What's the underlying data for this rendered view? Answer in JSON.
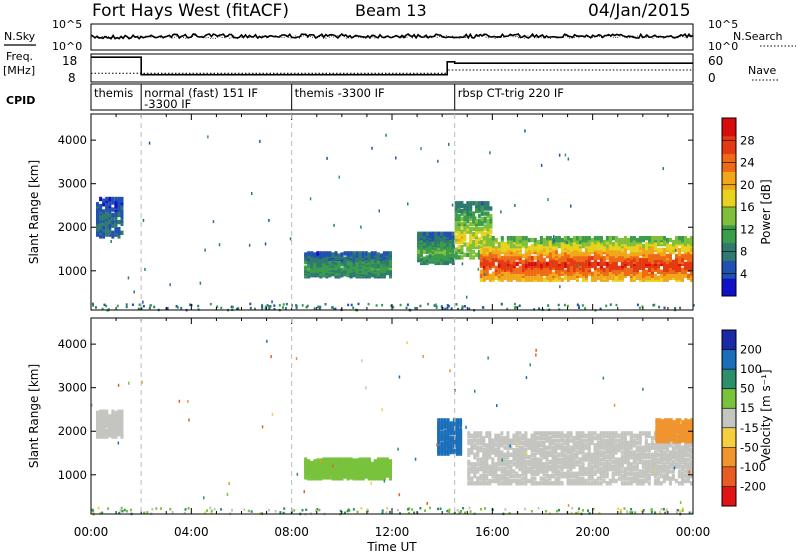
{
  "header": {
    "station": "Fort Hays West (fitACF)",
    "beam": "Beam 13",
    "date": "04/Jan/2015"
  },
  "side_labels": {
    "nsky": "N.Sky",
    "freq_line1": "Freq.",
    "freq_line2": "[MHz]",
    "cpid": "CPID",
    "nsearch": "N.Search",
    "nave": "Nave"
  },
  "top_strip": {
    "left_ticks": [
      "10^5",
      "10^0"
    ],
    "right_ticks": [
      "10^5",
      "10^0"
    ]
  },
  "freq_strip": {
    "left_ticks": [
      "18",
      "8"
    ],
    "right_ticks": [
      "60",
      "0"
    ],
    "freq_segments": [
      {
        "x0": 0.0,
        "x1": 2.0,
        "value": 17.5
      },
      {
        "x0": 2.0,
        "x1": 14.2,
        "value": 10.2
      },
      {
        "x0": 14.2,
        "x1": 14.5,
        "value": 15.6
      },
      {
        "x0": 14.5,
        "x1": 24.0,
        "value": 15.0
      }
    ],
    "nave_segments": [
      {
        "x0": 0.0,
        "x1": 2.0,
        "value": 17
      },
      {
        "x0": 2.0,
        "x1": 14.2,
        "value": 17
      },
      {
        "x0": 14.2,
        "x1": 24.0,
        "value": 25
      }
    ]
  },
  "cpid_segments": [
    {
      "start": 0.0,
      "line1": "themis",
      "line2": ""
    },
    {
      "start": 2.0,
      "line1": "normal (fast) 151 IF",
      "line2": "-3300 IF"
    },
    {
      "start": 8.0,
      "line1": "themis -3300 IF",
      "line2": ""
    },
    {
      "start": 14.5,
      "line1": "rbsp CT-trig 220 IF",
      "line2": ""
    }
  ],
  "power_colorbar": {
    "label": "Power [dB]",
    "ticks": [
      "28",
      "24",
      "20",
      "16",
      "12",
      "8",
      "4"
    ],
    "colors": [
      "#1010c8",
      "#2050b0",
      "#2e7a6e",
      "#3b9c4c",
      "#7fbf3a",
      "#e8d21e",
      "#f2a71a",
      "#ef6a16",
      "#e43a12",
      "#d80c0c"
    ]
  },
  "velocity_colorbar": {
    "label": "Velocity [m s⁻¹]",
    "ticks": [
      "200",
      "100",
      "50",
      "15",
      "-15",
      "-50",
      "-100",
      "-200"
    ],
    "colors": [
      "#1a2aa6",
      "#1b6eb8",
      "#2c8e6a",
      "#78c23c",
      "#c4c4c0",
      "#f6cf3e",
      "#f09430",
      "#e95b22",
      "#e01414"
    ]
  },
  "chart_data": {
    "type": "heatmap",
    "xlabel": "Time UT",
    "ylabel": "Slant Range [km]",
    "xlim": [
      0,
      24
    ],
    "ylim": [
      100,
      4600
    ],
    "x_tick_labels": [
      "00:00",
      "04:00",
      "08:00",
      "12:00",
      "16:00",
      "20:00",
      "00:00"
    ],
    "y_tick_labels": [
      "1000",
      "2000",
      "3000",
      "4000"
    ],
    "scan_mode_markers_UT": [
      2.0,
      8.0,
      14.5
    ],
    "panels": [
      {
        "name": "power",
        "unit": "dB",
        "echo_regions": [
          {
            "t0": 0.2,
            "t1": 1.3,
            "r0": 1800,
            "r1": 2700,
            "value": 6
          },
          {
            "t0": 8.5,
            "t1": 12.0,
            "r0": 900,
            "r1": 1450,
            "value": 9
          },
          {
            "t0": 13.0,
            "t1": 14.5,
            "r0": 1200,
            "r1": 1900,
            "value": 10
          },
          {
            "t0": 14.5,
            "t1": 16.0,
            "r0": 1300,
            "r1": 2600,
            "value": 14
          },
          {
            "t0": 15.5,
            "t1": 24.0,
            "r0": 800,
            "r1": 1800,
            "value": 22
          }
        ]
      },
      {
        "name": "velocity",
        "unit": "m s^-1",
        "echo_regions": [
          {
            "t0": 0.2,
            "t1": 1.3,
            "r0": 1900,
            "r1": 2500,
            "value": 0
          },
          {
            "t0": 8.5,
            "t1": 12.0,
            "r0": 950,
            "r1": 1400,
            "value": 40
          },
          {
            "t0": 13.8,
            "t1": 14.8,
            "r0": 1500,
            "r1": 2300,
            "value": 150
          },
          {
            "t0": 15.0,
            "t1": 24.0,
            "r0": 800,
            "r1": 2000,
            "value": 0
          },
          {
            "t0": 22.5,
            "t1": 24.0,
            "r0": 1800,
            "r1": 2300,
            "value": -80
          }
        ]
      }
    ]
  }
}
